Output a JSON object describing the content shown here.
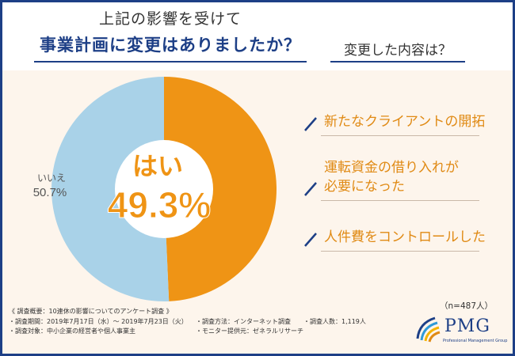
{
  "header": {
    "question1_line1": "上記の影響を受けて",
    "question1_line2": "事業計画に変更はありましたか？",
    "question2": "変更した内容は？"
  },
  "colors": {
    "yes": "#ef9415",
    "no": "#a9d2e8",
    "accent_text": "#e08a14",
    "brand_blue": "#1d3f86",
    "background": "#fdf5ec"
  },
  "chart_data": {
    "type": "pie",
    "style": "donut",
    "slices": [
      {
        "label": "はい",
        "value": 49.3,
        "display": "49.3%",
        "color": "#ef9415"
      },
      {
        "label": "いいえ",
        "value": 50.7,
        "display": "50.7%",
        "color": "#a9d2e8"
      }
    ]
  },
  "center_label": {
    "yes_text": "はい",
    "yes_value": "49.3%"
  },
  "outside_label": {
    "no_text": "いいえ",
    "no_value": "50.7%"
  },
  "reasons": [
    {
      "text": "新たなクライアントの開拓"
    },
    {
      "text": "運転資金の借り入れが",
      "text2": "必要になった"
    },
    {
      "text": "人件費をコントロールした"
    }
  ],
  "sample_size": "（n=487人）",
  "footer": {
    "title": "《 調査概要：10連休の影響についてのアンケート調査 》",
    "period": "・調査期間：2019年7月17日（水）～ 2019年7月23日（火）",
    "method": "・調査方法：インターネット調査",
    "count": "・調査人数：1,119人",
    "target": "・調査対象：中小企業の経営者や個人事業主",
    "provider": "・モニター提供元：ゼネラルリサーチ"
  },
  "logo": {
    "name": "PMG",
    "subtitle": "Professional Management Group"
  }
}
